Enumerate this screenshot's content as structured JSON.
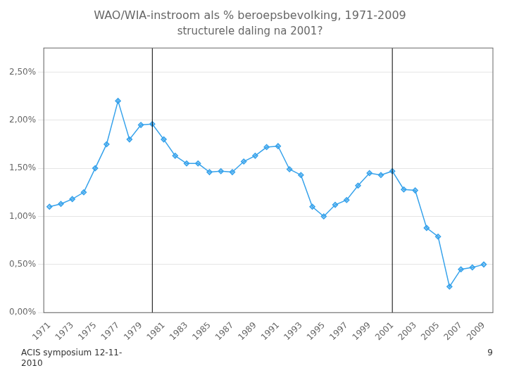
{
  "chart_data": {
    "type": "line",
    "title": "WAO/WIA-instroom als % beroepsbevolking, 1971-2009",
    "subtitle": "structurele daling na 2001?",
    "annotations": [
      "ACIS symposium 12-11-\n2010",
      "9"
    ],
    "x": [
      1971,
      1972,
      1973,
      1974,
      1975,
      1976,
      1977,
      1978,
      1979,
      1980,
      1981,
      1982,
      1983,
      1984,
      1985,
      1986,
      1987,
      1988,
      1989,
      1990,
      1991,
      1992,
      1993,
      1994,
      1995,
      1996,
      1997,
      1998,
      1999,
      2000,
      2001,
      2002,
      2003,
      2004,
      2005,
      2006,
      2007,
      2008,
      2009
    ],
    "values": [
      1.1,
      1.13,
      1.18,
      1.25,
      1.5,
      1.75,
      2.2,
      1.8,
      1.95,
      1.96,
      1.8,
      1.63,
      1.55,
      1.55,
      1.46,
      1.47,
      1.46,
      1.57,
      1.63,
      1.72,
      1.73,
      1.49,
      1.43,
      1.1,
      1.0,
      1.12,
      1.17,
      1.32,
      1.45,
      1.43,
      1.47,
      1.28,
      1.27,
      0.88,
      0.79,
      0.27,
      0.45,
      0.47,
      0.5
    ],
    "marker": "diamond",
    "vlines": [
      1980,
      2001
    ],
    "xlim": [
      1970.5,
      2009.8
    ],
    "xticks": [
      1971,
      1973,
      1975,
      1977,
      1979,
      1981,
      1983,
      1985,
      1987,
      1989,
      1991,
      1993,
      1995,
      1997,
      1999,
      2001,
      2003,
      2005,
      2007,
      2009
    ],
    "ylim": [
      0,
      2.75
    ],
    "yticks": [
      {
        "value": 0.0,
        "label": "0,00%"
      },
      {
        "value": 0.5,
        "label": "0,50%"
      },
      {
        "value": 1.0,
        "label": "1,00%"
      },
      {
        "value": 1.5,
        "label": "1,50%"
      },
      {
        "value": 2.0,
        "label": "2,00%"
      },
      {
        "value": 2.5,
        "label": "2,50%"
      }
    ],
    "grid": true
  }
}
